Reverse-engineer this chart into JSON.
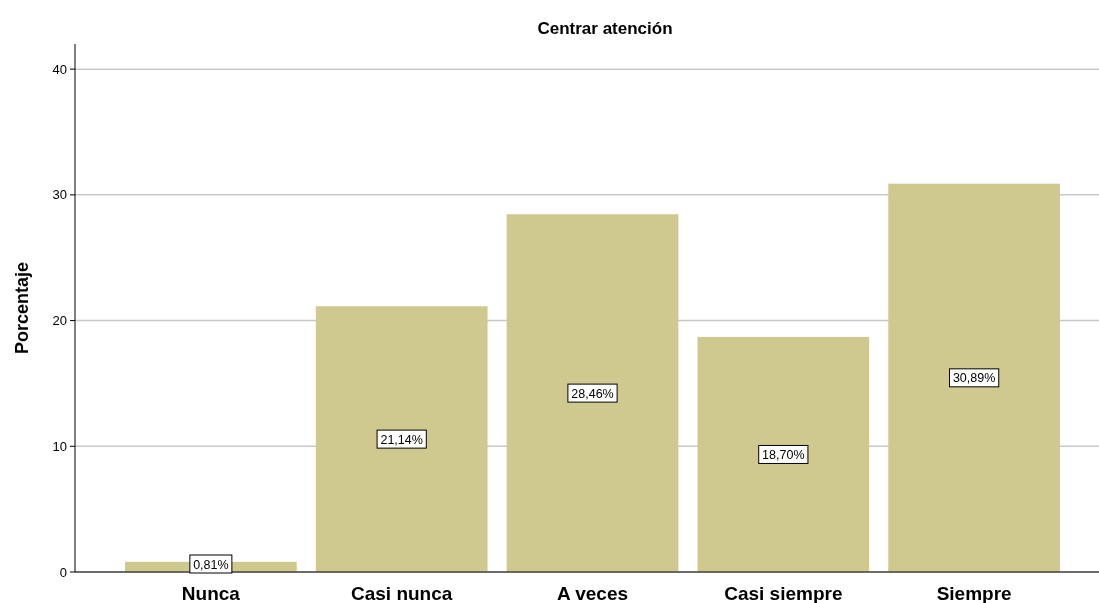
{
  "chart_data": {
    "type": "bar",
    "title": "Centrar atención",
    "ylabel": "Porcentaje",
    "categories": [
      "Nunca",
      "Casi nunca",
      "A veces",
      "Casi siempre",
      "Siempre"
    ],
    "values": [
      0.81,
      21.14,
      28.46,
      18.7,
      30.89
    ],
    "value_labels": [
      "0,81%",
      "21,14%",
      "28,46%",
      "18,70%",
      "30,89%"
    ],
    "color": "#d0c98f",
    "ylim": [
      0,
      42
    ],
    "yticks": [
      0,
      10,
      20,
      30,
      40
    ],
    "grid": "y"
  }
}
